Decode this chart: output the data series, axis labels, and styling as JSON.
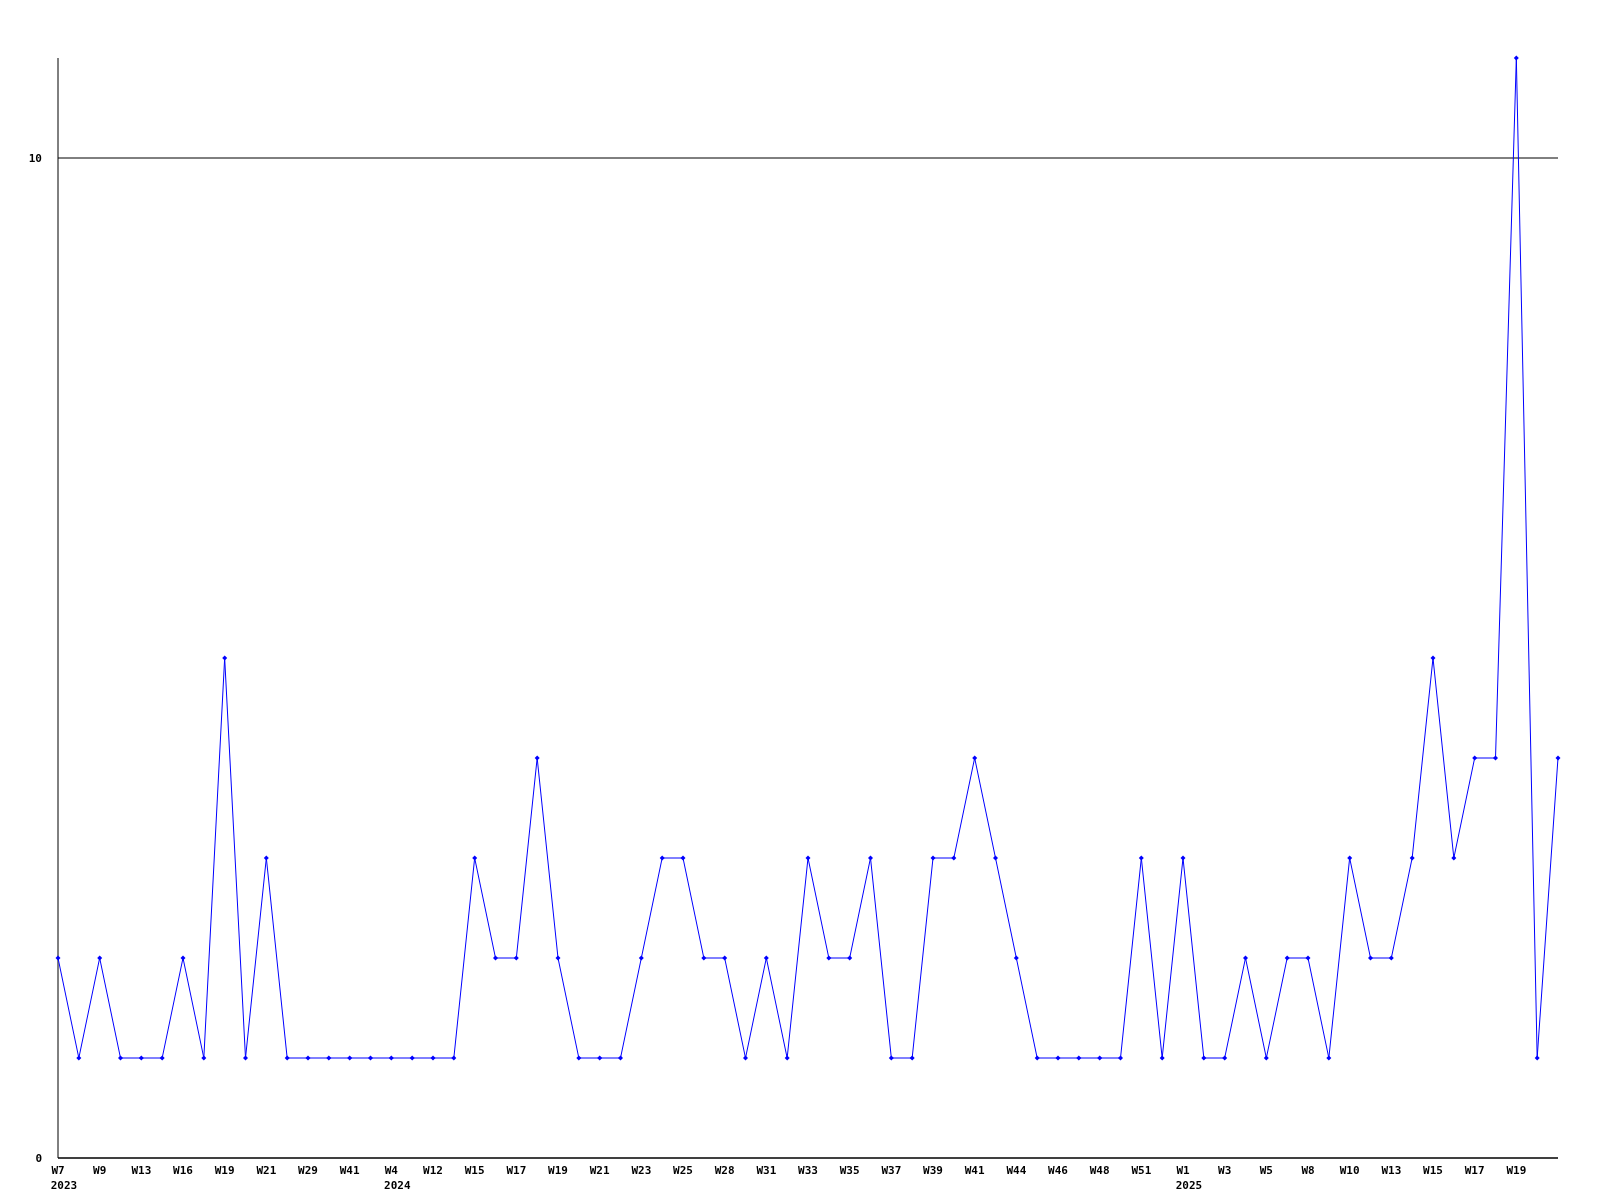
{
  "chart_data": {
    "type": "line",
    "categories": [
      "W7\n2023",
      null,
      "W9",
      null,
      "W13",
      null,
      "W16",
      null,
      "W19",
      null,
      "W21",
      null,
      "W29",
      null,
      "W41",
      null,
      "W4\n2024",
      null,
      "W12",
      null,
      "W15",
      null,
      "W17",
      null,
      "W19",
      null,
      "W21",
      null,
      "W23",
      null,
      "W25",
      null,
      "W28",
      null,
      "W31",
      null,
      "W33",
      null,
      "W35",
      null,
      "W37",
      null,
      "W39",
      null,
      "W41",
      null,
      "W44",
      null,
      "W46",
      null,
      "W48",
      null,
      "W51",
      null,
      "W1\n2025",
      null,
      "W3",
      null,
      "W5",
      null,
      "W8",
      null,
      "W10",
      null,
      "W13",
      null,
      "W15",
      null,
      "W17",
      null,
      "W19",
      null,
      null
    ],
    "series": [
      {
        "color": "#0000ff",
        "values": [
          2,
          1,
          2,
          1,
          1,
          1,
          2,
          1,
          5,
          1,
          3,
          1,
          1,
          1,
          1,
          1,
          1,
          1,
          1,
          1,
          3,
          2,
          2,
          4,
          2,
          1,
          1,
          1,
          2,
          3,
          3,
          2,
          2,
          1,
          2,
          1,
          3,
          2,
          2,
          3,
          1,
          1,
          3,
          3,
          4,
          3,
          2,
          1,
          1,
          1,
          1,
          1,
          3,
          1,
          3,
          1,
          1,
          2,
          1,
          2,
          2,
          1,
          3,
          2,
          2,
          3,
          5,
          3,
          4,
          4,
          11,
          1,
          4
        ]
      }
    ],
    "ylim": [
      0,
      11
    ],
    "yticks": [
      0,
      10
    ],
    "grid": "y",
    "marker": "diamond"
  }
}
